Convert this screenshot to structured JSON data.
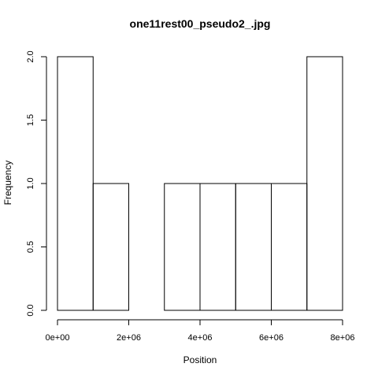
{
  "chart_data": {
    "type": "bar",
    "title": "one11rest00_pseudo2_.jpg",
    "xlabel": "Position",
    "ylabel": "Frequency",
    "bin_edges": [
      0,
      1000000,
      2000000,
      3000000,
      4000000,
      5000000,
      6000000,
      7000000,
      8000000
    ],
    "values": [
      2,
      1,
      0,
      1,
      1,
      1,
      1,
      2
    ],
    "xlim": [
      0,
      8000000
    ],
    "ylim": [
      0,
      2
    ],
    "x_ticks": [
      {
        "value": 0,
        "label": "0e+00"
      },
      {
        "value": 2000000,
        "label": "2e+06"
      },
      {
        "value": 4000000,
        "label": "4e+06"
      },
      {
        "value": 6000000,
        "label": "6e+06"
      },
      {
        "value": 8000000,
        "label": "8e+06"
      }
    ],
    "y_ticks": [
      {
        "value": 0,
        "label": "0.0"
      },
      {
        "value": 0.5,
        "label": "0.5"
      },
      {
        "value": 1,
        "label": "1.0"
      },
      {
        "value": 1.5,
        "label": "1.5"
      },
      {
        "value": 2,
        "label": "2.0"
      }
    ],
    "grid": false,
    "colors": {
      "bar_fill": "#ffffff",
      "bar_stroke": "#000000"
    }
  }
}
